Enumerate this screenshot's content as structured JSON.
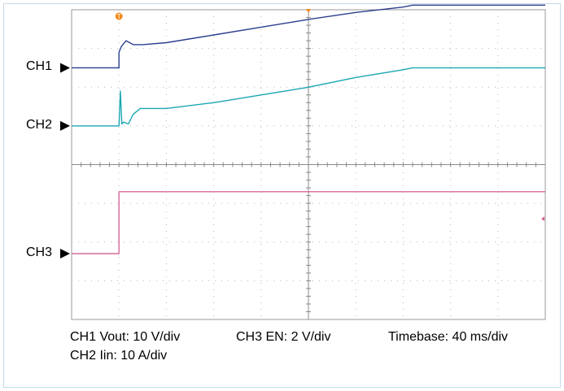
{
  "chart_data": {
    "type": "line",
    "title": "",
    "xlabel": "",
    "ylabel": "",
    "grid": true,
    "divisions": {
      "x": 10,
      "y": 8
    },
    "xlim": [
      0,
      10
    ],
    "ylim": [
      0,
      8
    ],
    "colors": {
      "ch1": "#2a3f8f",
      "ch2": "#1ba7b3",
      "ch3": "#d46a9a",
      "trigger": "#f08a1a",
      "grid": "#b8b8b8",
      "frame": "#999999"
    },
    "channel_markers": [
      {
        "name": "CH1",
        "level": 6.5
      },
      {
        "name": "CH2",
        "level": 5.0
      },
      {
        "name": "CH3",
        "level": 1.7
      }
    ],
    "trigger_marker": {
      "x": 1.0,
      "label": "T"
    },
    "series": [
      {
        "key": "ch1",
        "x": [
          0,
          1.0,
          1.0,
          1.05,
          1.15,
          1.3,
          1.5,
          2.0,
          3.0,
          4.0,
          5.0,
          6.0,
          7.0,
          7.2,
          8.0,
          9.0,
          10.0
        ],
        "y": [
          6.5,
          6.5,
          6.9,
          7.05,
          7.2,
          7.1,
          7.1,
          7.15,
          7.35,
          7.55,
          7.75,
          7.93,
          8.07,
          8.12,
          8.12,
          8.12,
          8.12
        ]
      },
      {
        "key": "ch2",
        "x": [
          0,
          1.0,
          1.03,
          1.06,
          1.1,
          1.2,
          1.3,
          1.45,
          1.6,
          2.0,
          3.0,
          4.0,
          5.0,
          6.0,
          7.0,
          7.2,
          8.0,
          9.0,
          10.0
        ],
        "y": [
          5.0,
          5.0,
          5.9,
          5.05,
          5.1,
          5.05,
          5.3,
          5.45,
          5.45,
          5.45,
          5.6,
          5.8,
          6.0,
          6.25,
          6.45,
          6.5,
          6.5,
          6.5,
          6.5
        ]
      },
      {
        "key": "ch3",
        "x": [
          0,
          1.0,
          1.0,
          10.0
        ],
        "y": [
          1.7,
          1.7,
          3.3,
          3.3
        ]
      }
    ],
    "annotations": {
      "ch1_scale": "CH1 Vout: 10 V/div",
      "ch3_scale": "CH3 EN: 2 V/div",
      "timebase": "Timebase: 40 ms/div",
      "ch2_scale": "CH2 Iin: 10 A/div"
    }
  }
}
